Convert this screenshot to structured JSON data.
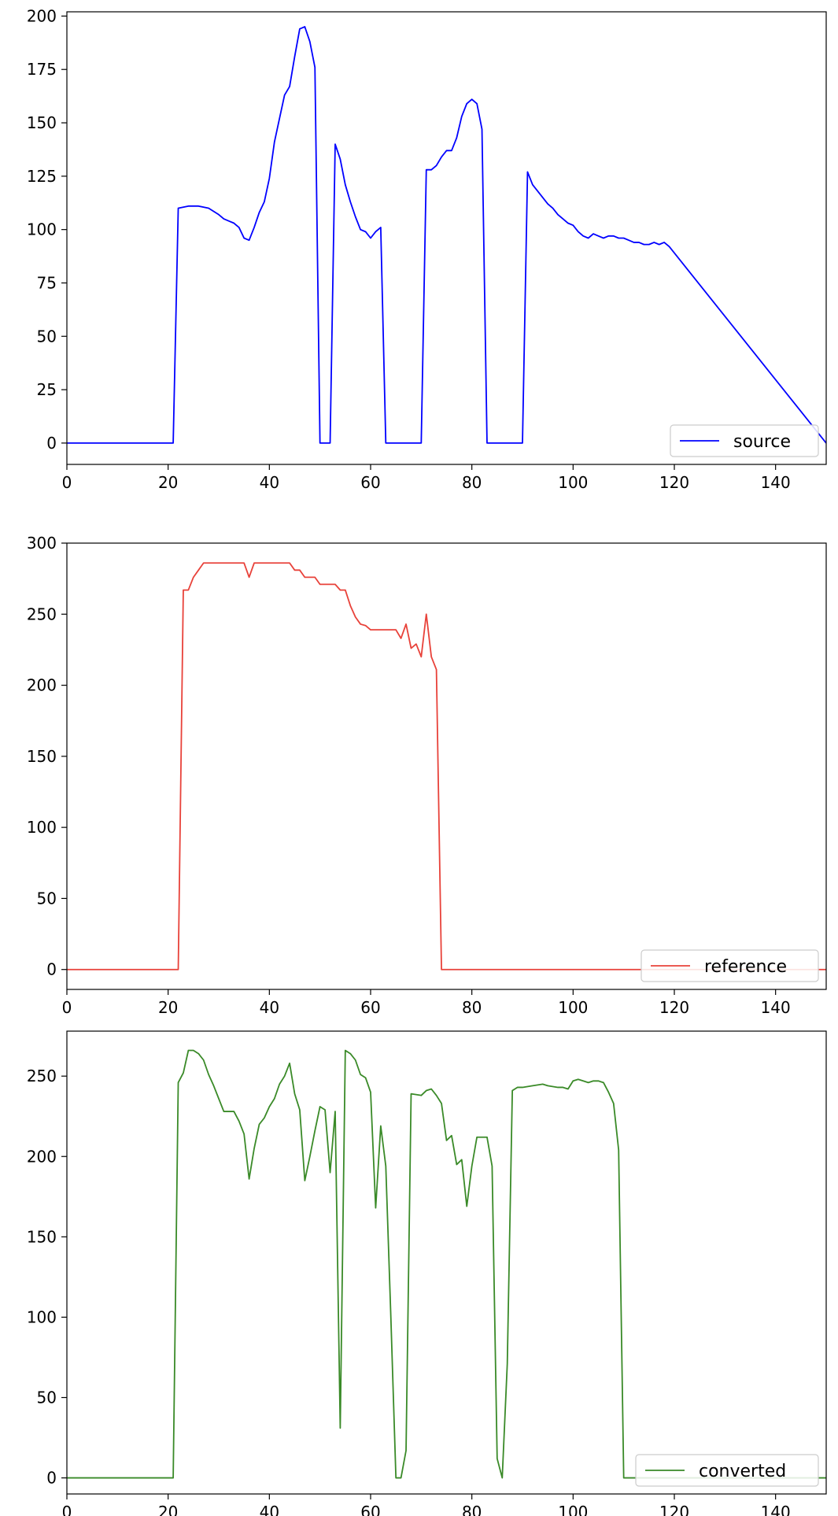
{
  "chart_data": [
    {
      "type": "line",
      "xlim": [
        0,
        150
      ],
      "ylim": [
        -10,
        202
      ],
      "xticks": [
        0,
        20,
        40,
        60,
        80,
        100,
        120,
        140
      ],
      "yticks": [
        0,
        25,
        50,
        75,
        100,
        125,
        150,
        175,
        200
      ],
      "legend_position": "lower-right",
      "series": [
        {
          "name": "source",
          "color": "#0000ff",
          "x": [
            0,
            21,
            22,
            24,
            26,
            28,
            30,
            31,
            32,
            33,
            34,
            35,
            36,
            37,
            38,
            39,
            40,
            41,
            42,
            43,
            44,
            45,
            46,
            47,
            48,
            49,
            50,
            52,
            53,
            54,
            55,
            56,
            57,
            58,
            59,
            60,
            61,
            62,
            63,
            70,
            71,
            72,
            73,
            74,
            75,
            76,
            77,
            78,
            79,
            80,
            81,
            82,
            83,
            90,
            91,
            92,
            93,
            94,
            95,
            96,
            97,
            98,
            99,
            100,
            101,
            102,
            103,
            104,
            105,
            106,
            107,
            108,
            109,
            110,
            111,
            112,
            113,
            114,
            115,
            116,
            117,
            118,
            119,
            150
          ],
          "y": [
            0,
            0,
            110,
            111,
            111,
            110,
            107,
            105,
            104,
            103,
            101,
            96,
            95,
            101,
            108,
            113,
            124,
            141,
            152,
            163,
            167,
            181,
            194,
            195,
            188,
            176,
            0,
            0,
            140,
            133,
            121,
            113,
            106,
            100,
            99,
            96,
            99,
            101,
            0,
            0,
            128,
            128,
            130,
            134,
            137,
            137,
            143,
            153,
            159,
            161,
            159,
            147,
            0,
            0,
            127,
            121,
            118,
            115,
            112,
            110,
            107,
            105,
            103,
            102,
            99,
            97,
            96,
            98,
            97,
            96,
            97,
            97,
            96,
            96,
            95,
            94,
            94,
            93,
            93,
            94,
            93,
            94,
            92,
            0
          ]
        }
      ]
    },
    {
      "type": "line",
      "xlim": [
        0,
        150
      ],
      "ylim": [
        -14,
        300
      ],
      "xticks": [
        0,
        20,
        40,
        60,
        80,
        100,
        120,
        140
      ],
      "yticks": [
        0,
        50,
        100,
        150,
        200,
        250,
        300
      ],
      "legend_position": "lower-right",
      "series": [
        {
          "name": "reference",
          "color": "#e8423a",
          "x": [
            0,
            22,
            23,
            24,
            25,
            26,
            27,
            30,
            35,
            36,
            37,
            40,
            44,
            45,
            46,
            47,
            48,
            49,
            50,
            52,
            53,
            54,
            55,
            56,
            57,
            58,
            59,
            60,
            61,
            62,
            63,
            64,
            65,
            66,
            67,
            68,
            69,
            70,
            71,
            72,
            73,
            74,
            150
          ],
          "y": [
            0,
            0,
            267,
            267,
            276,
            281,
            286,
            286,
            286,
            276,
            286,
            286,
            286,
            281,
            281,
            276,
            276,
            276,
            271,
            271,
            271,
            267,
            267,
            256,
            248,
            243,
            242,
            239,
            239,
            239,
            239,
            239,
            239,
            233,
            243,
            226,
            229,
            220,
            250,
            220,
            211,
            0,
            0
          ]
        }
      ]
    },
    {
      "type": "line",
      "xlim": [
        0,
        150
      ],
      "ylim": [
        -10,
        278
      ],
      "xticks": [
        0,
        20,
        40,
        60,
        80,
        100,
        120,
        140
      ],
      "yticks": [
        0,
        50,
        100,
        150,
        200,
        250
      ],
      "legend_position": "lower-right",
      "series": [
        {
          "name": "converted",
          "color": "#3a8a28",
          "x": [
            0,
            21,
            22,
            23,
            24,
            25,
            26,
            27,
            28,
            29,
            30,
            31,
            32,
            33,
            34,
            35,
            36,
            37,
            38,
            39,
            40,
            41,
            42,
            43,
            44,
            45,
            46,
            47,
            48,
            49,
            50,
            51,
            52,
            53,
            54,
            55,
            56,
            57,
            58,
            59,
            60,
            61,
            62,
            63,
            64,
            65,
            66,
            67,
            68,
            70,
            71,
            72,
            73,
            74,
            75,
            76,
            77,
            78,
            79,
            80,
            81,
            82,
            83,
            84,
            85,
            86,
            87,
            88,
            89,
            90,
            92,
            94,
            95,
            97,
            98,
            99,
            100,
            101,
            102,
            103,
            104,
            105,
            106,
            107,
            108,
            109,
            110,
            150
          ],
          "y": [
            0,
            0,
            246,
            252,
            266,
            266,
            264,
            260,
            251,
            244,
            236,
            228,
            228,
            228,
            222,
            214,
            186,
            205,
            220,
            224,
            231,
            236,
            245,
            250,
            258,
            239,
            229,
            185,
            200,
            216,
            231,
            229,
            190,
            228,
            31,
            266,
            264,
            260,
            251,
            249,
            240,
            168,
            219,
            194,
            100,
            0,
            0,
            17,
            239,
            238,
            241,
            242,
            238,
            233,
            210,
            213,
            195,
            198,
            169,
            194,
            212,
            212,
            212,
            194,
            12,
            0,
            71,
            241,
            243,
            243,
            244,
            245,
            244,
            243,
            243,
            242,
            247,
            248,
            247,
            246,
            247,
            247,
            246,
            240,
            233,
            204,
            0,
            0
          ]
        }
      ]
    }
  ]
}
